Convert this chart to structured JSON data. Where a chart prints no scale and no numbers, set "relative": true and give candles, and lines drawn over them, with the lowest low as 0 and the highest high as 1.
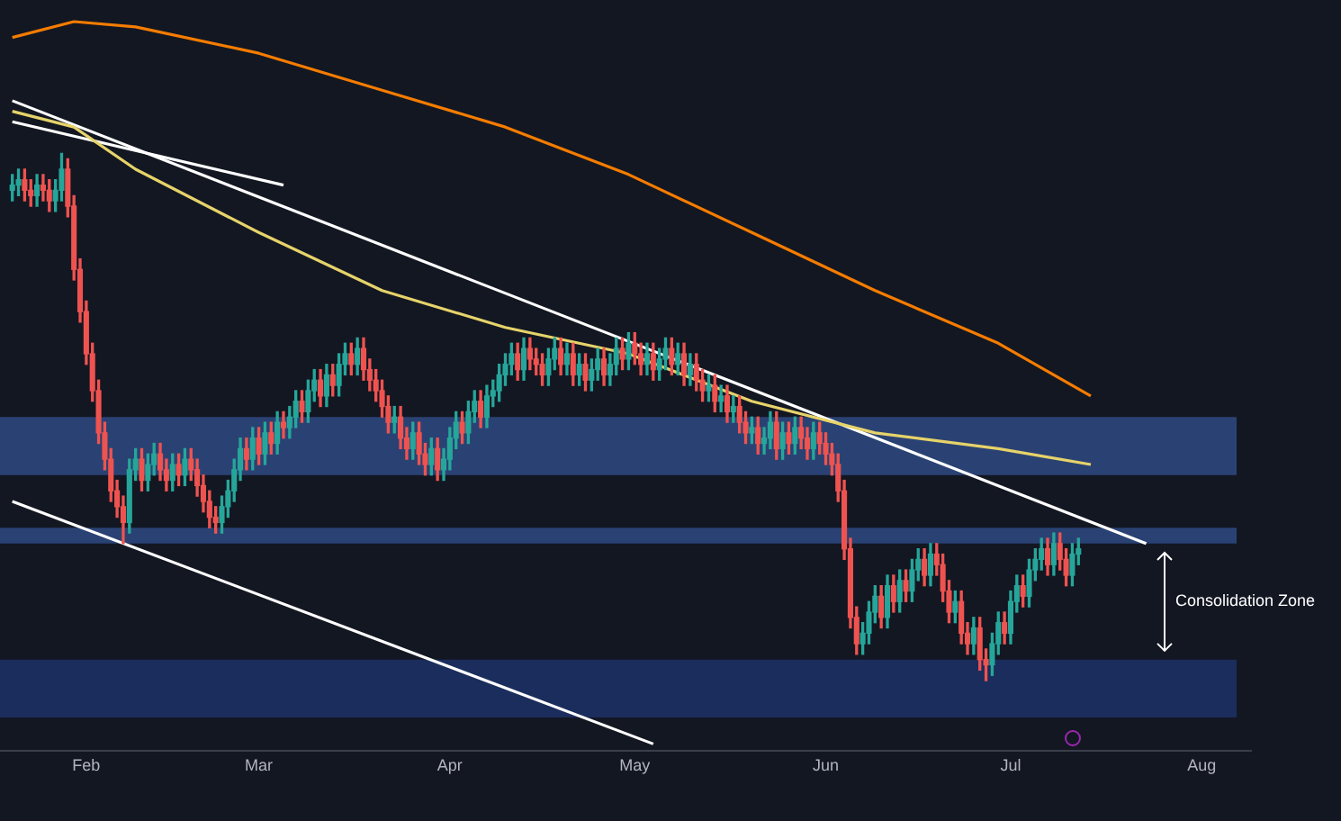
{
  "chart_data": {
    "type": "candlestick",
    "relative": true,
    "x": [
      "--01-20",
      "--01-21",
      "--01-22",
      "--01-23",
      "--01-24",
      "--01-25",
      "--01-26",
      "--01-27",
      "--01-28",
      "--01-29",
      "--01-30",
      "--01-31",
      "--02-01",
      "--02-02",
      "--02-03",
      "--02-04",
      "--02-05",
      "--02-06",
      "--02-07",
      "--02-08",
      "--02-09",
      "--02-10",
      "--02-11",
      "--02-12",
      "--02-13",
      "--02-14",
      "--02-15",
      "--02-16",
      "--02-17",
      "--02-18",
      "--02-19",
      "--02-20",
      "--02-21",
      "--02-22",
      "--02-23",
      "--02-24",
      "--02-25",
      "--02-26",
      "--02-27",
      "--02-28",
      "--03-01",
      "--03-02",
      "--03-03",
      "--03-04",
      "--03-05",
      "--03-06",
      "--03-07",
      "--03-08",
      "--03-09",
      "--03-10",
      "--03-11",
      "--03-12",
      "--03-13",
      "--03-14",
      "--03-15",
      "--03-16",
      "--03-17",
      "--03-18",
      "--03-19",
      "--03-20",
      "--03-21",
      "--03-22",
      "--03-23",
      "--03-24",
      "--03-25",
      "--03-26",
      "--03-27",
      "--03-28",
      "--03-29",
      "--03-30",
      "--03-31",
      "--04-01",
      "--04-02",
      "--04-03",
      "--04-04",
      "--04-05",
      "--04-06",
      "--04-07",
      "--04-08",
      "--04-09",
      "--04-10",
      "--04-11",
      "--04-12",
      "--04-13",
      "--04-14",
      "--04-15",
      "--04-16",
      "--04-17",
      "--04-18",
      "--04-19",
      "--04-20",
      "--04-21",
      "--04-22",
      "--04-23",
      "--04-24",
      "--04-25",
      "--04-26",
      "--04-27",
      "--04-28",
      "--04-29",
      "--04-30",
      "--05-01",
      "--05-02",
      "--05-03",
      "--05-04",
      "--05-05",
      "--05-06",
      "--05-07",
      "--05-08",
      "--05-09",
      "--05-10",
      "--05-11",
      "--05-12",
      "--05-13",
      "--05-14",
      "--05-15",
      "--05-16",
      "--05-17",
      "--05-18",
      "--05-19",
      "--05-20",
      "--05-21",
      "--05-22",
      "--05-23",
      "--05-24",
      "--05-25",
      "--05-26",
      "--05-27",
      "--05-28",
      "--05-29",
      "--05-30",
      "--05-31",
      "--06-01",
      "--06-02",
      "--06-03",
      "--06-04",
      "--06-05",
      "--06-06",
      "--06-07",
      "--06-08",
      "--06-09",
      "--06-10",
      "--06-11",
      "--06-12",
      "--06-13",
      "--06-14",
      "--06-15",
      "--06-16",
      "--06-17",
      "--06-18",
      "--06-19",
      "--06-20",
      "--06-21",
      "--06-22",
      "--06-23",
      "--06-24",
      "--06-25",
      "--06-26",
      "--06-27",
      "--06-28",
      "--06-29",
      "--06-30",
      "--07-01",
      "--07-02",
      "--07-03",
      "--07-04",
      "--07-05",
      "--07-06",
      "--07-07",
      "--07-08",
      "--07-09",
      "--07-10",
      "--07-11",
      "--07-12"
    ],
    "ohlc": [
      [
        0.93,
        0.96,
        0.91,
        0.94
      ],
      [
        0.94,
        0.97,
        0.92,
        0.95
      ],
      [
        0.95,
        0.97,
        0.91,
        0.93
      ],
      [
        0.93,
        0.95,
        0.9,
        0.92
      ],
      [
        0.92,
        0.96,
        0.9,
        0.94
      ],
      [
        0.94,
        0.96,
        0.91,
        0.93
      ],
      [
        0.93,
        0.95,
        0.89,
        0.91
      ],
      [
        0.91,
        0.95,
        0.89,
        0.93
      ],
      [
        0.93,
        1,
        0.91,
        0.97
      ],
      [
        0.97,
        0.99,
        0.88,
        0.9
      ],
      [
        0.9,
        0.92,
        0.76,
        0.78
      ],
      [
        0.78,
        0.8,
        0.68,
        0.7
      ],
      [
        0.7,
        0.72,
        0.6,
        0.62
      ],
      [
        0.62,
        0.64,
        0.53,
        0.55
      ],
      [
        0.55,
        0.57,
        0.45,
        0.47
      ],
      [
        0.47,
        0.49,
        0.4,
        0.42
      ],
      [
        0.42,
        0.44,
        0.34,
        0.36
      ],
      [
        0.36,
        0.38,
        0.31,
        0.33
      ],
      [
        0.33,
        0.35,
        0.26,
        0.3
      ],
      [
        0.3,
        0.42,
        0.28,
        0.4
      ],
      [
        0.4,
        0.44,
        0.38,
        0.42
      ],
      [
        0.42,
        0.44,
        0.36,
        0.38
      ],
      [
        0.38,
        0.43,
        0.36,
        0.41
      ],
      [
        0.41,
        0.45,
        0.39,
        0.43
      ],
      [
        0.43,
        0.45,
        0.38,
        0.4
      ],
      [
        0.4,
        0.42,
        0.36,
        0.38
      ],
      [
        0.38,
        0.43,
        0.36,
        0.41
      ],
      [
        0.41,
        0.43,
        0.37,
        0.39
      ],
      [
        0.39,
        0.44,
        0.37,
        0.42
      ],
      [
        0.42,
        0.44,
        0.38,
        0.4
      ],
      [
        0.4,
        0.42,
        0.35,
        0.37
      ],
      [
        0.37,
        0.39,
        0.32,
        0.34
      ],
      [
        0.34,
        0.36,
        0.29,
        0.31
      ],
      [
        0.31,
        0.33,
        0.28,
        0.3
      ],
      [
        0.3,
        0.35,
        0.28,
        0.33
      ],
      [
        0.33,
        0.38,
        0.31,
        0.36
      ],
      [
        0.36,
        0.42,
        0.34,
        0.4
      ],
      [
        0.4,
        0.46,
        0.38,
        0.44
      ],
      [
        0.44,
        0.46,
        0.4,
        0.42
      ],
      [
        0.42,
        0.48,
        0.4,
        0.46
      ],
      [
        0.46,
        0.48,
        0.41,
        0.43
      ],
      [
        0.43,
        0.49,
        0.41,
        0.47
      ],
      [
        0.47,
        0.49,
        0.43,
        0.45
      ],
      [
        0.45,
        0.51,
        0.43,
        0.49
      ],
      [
        0.49,
        0.51,
        0.46,
        0.48
      ],
      [
        0.48,
        0.52,
        0.46,
        0.5
      ],
      [
        0.5,
        0.55,
        0.48,
        0.53
      ],
      [
        0.53,
        0.55,
        0.49,
        0.51
      ],
      [
        0.51,
        0.57,
        0.49,
        0.55
      ],
      [
        0.55,
        0.59,
        0.53,
        0.57
      ],
      [
        0.57,
        0.59,
        0.52,
        0.54
      ],
      [
        0.54,
        0.6,
        0.52,
        0.58
      ],
      [
        0.58,
        0.6,
        0.54,
        0.56
      ],
      [
        0.56,
        0.62,
        0.54,
        0.6
      ],
      [
        0.6,
        0.64,
        0.58,
        0.62
      ],
      [
        0.62,
        0.64,
        0.58,
        0.6
      ],
      [
        0.6,
        0.65,
        0.58,
        0.63
      ],
      [
        0.63,
        0.65,
        0.57,
        0.59
      ],
      [
        0.59,
        0.61,
        0.55,
        0.57
      ],
      [
        0.57,
        0.59,
        0.53,
        0.55
      ],
      [
        0.55,
        0.57,
        0.5,
        0.52
      ],
      [
        0.52,
        0.54,
        0.47,
        0.49
      ],
      [
        0.49,
        0.52,
        0.47,
        0.5
      ],
      [
        0.5,
        0.52,
        0.44,
        0.46
      ],
      [
        0.46,
        0.48,
        0.42,
        0.44
      ],
      [
        0.44,
        0.49,
        0.42,
        0.47
      ],
      [
        0.47,
        0.49,
        0.41,
        0.43
      ],
      [
        0.43,
        0.45,
        0.39,
        0.41
      ],
      [
        0.41,
        0.46,
        0.39,
        0.44
      ],
      [
        0.44,
        0.46,
        0.38,
        0.4
      ],
      [
        0.4,
        0.44,
        0.38,
        0.42
      ],
      [
        0.42,
        0.48,
        0.4,
        0.46
      ],
      [
        0.46,
        0.51,
        0.44,
        0.49
      ],
      [
        0.49,
        0.51,
        0.45,
        0.47
      ],
      [
        0.47,
        0.53,
        0.45,
        0.51
      ],
      [
        0.51,
        0.55,
        0.49,
        0.53
      ],
      [
        0.53,
        0.55,
        0.48,
        0.5
      ],
      [
        0.5,
        0.56,
        0.48,
        0.54
      ],
      [
        0.54,
        0.57,
        0.52,
        0.55
      ],
      [
        0.55,
        0.6,
        0.53,
        0.58
      ],
      [
        0.58,
        0.62,
        0.56,
        0.6
      ],
      [
        0.6,
        0.64,
        0.58,
        0.62
      ],
      [
        0.62,
        0.64,
        0.57,
        0.59
      ],
      [
        0.59,
        0.65,
        0.57,
        0.63
      ],
      [
        0.63,
        0.65,
        0.59,
        0.61
      ],
      [
        0.61,
        0.63,
        0.58,
        0.6
      ],
      [
        0.6,
        0.62,
        0.56,
        0.58
      ],
      [
        0.58,
        0.63,
        0.56,
        0.61
      ],
      [
        0.61,
        0.65,
        0.59,
        0.63
      ],
      [
        0.63,
        0.65,
        0.58,
        0.6
      ],
      [
        0.6,
        0.64,
        0.58,
        0.62
      ],
      [
        0.62,
        0.64,
        0.56,
        0.58
      ],
      [
        0.58,
        0.62,
        0.56,
        0.6
      ],
      [
        0.6,
        0.62,
        0.55,
        0.57
      ],
      [
        0.57,
        0.61,
        0.55,
        0.59
      ],
      [
        0.59,
        0.63,
        0.57,
        0.61
      ],
      [
        0.61,
        0.63,
        0.56,
        0.58
      ],
      [
        0.58,
        0.62,
        0.56,
        0.6
      ],
      [
        0.6,
        0.65,
        0.58,
        0.63
      ],
      [
        0.63,
        0.65,
        0.59,
        0.61
      ],
      [
        0.61,
        0.66,
        0.59,
        0.64
      ],
      [
        0.64,
        0.66,
        0.6,
        0.62
      ],
      [
        0.62,
        0.64,
        0.58,
        0.6
      ],
      [
        0.6,
        0.64,
        0.58,
        0.62
      ],
      [
        0.62,
        0.64,
        0.57,
        0.59
      ],
      [
        0.59,
        0.63,
        0.57,
        0.61
      ],
      [
        0.61,
        0.65,
        0.59,
        0.63
      ],
      [
        0.63,
        0.65,
        0.58,
        0.6
      ],
      [
        0.6,
        0.64,
        0.58,
        0.62
      ],
      [
        0.62,
        0.64,
        0.56,
        0.58
      ],
      [
        0.58,
        0.62,
        0.56,
        0.6
      ],
      [
        0.6,
        0.62,
        0.55,
        0.57
      ],
      [
        0.57,
        0.59,
        0.53,
        0.55
      ],
      [
        0.55,
        0.58,
        0.53,
        0.56
      ],
      [
        0.56,
        0.58,
        0.51,
        0.53
      ],
      [
        0.53,
        0.56,
        0.51,
        0.54
      ],
      [
        0.54,
        0.56,
        0.49,
        0.51
      ],
      [
        0.51,
        0.54,
        0.49,
        0.52
      ],
      [
        0.52,
        0.54,
        0.47,
        0.49
      ],
      [
        0.49,
        0.51,
        0.45,
        0.47
      ],
      [
        0.47,
        0.5,
        0.45,
        0.48
      ],
      [
        0.48,
        0.5,
        0.43,
        0.45
      ],
      [
        0.45,
        0.48,
        0.43,
        0.46
      ],
      [
        0.46,
        0.51,
        0.44,
        0.49
      ],
      [
        0.49,
        0.51,
        0.42,
        0.44
      ],
      [
        0.44,
        0.49,
        0.42,
        0.47
      ],
      [
        0.47,
        0.49,
        0.43,
        0.45
      ],
      [
        0.45,
        0.5,
        0.43,
        0.48
      ],
      [
        0.48,
        0.5,
        0.44,
        0.46
      ],
      [
        0.46,
        0.48,
        0.42,
        0.44
      ],
      [
        0.44,
        0.49,
        0.42,
        0.47
      ],
      [
        0.47,
        0.49,
        0.43,
        0.45
      ],
      [
        0.45,
        0.47,
        0.41,
        0.43
      ],
      [
        0.43,
        0.45,
        0.39,
        0.41
      ],
      [
        0.41,
        0.43,
        0.34,
        0.36
      ],
      [
        0.36,
        0.38,
        0.23,
        0.25
      ],
      [
        0.25,
        0.27,
        0.1,
        0.12
      ],
      [
        0.12,
        0.14,
        0.05,
        0.07
      ],
      [
        0.07,
        0.11,
        0.05,
        0.09
      ],
      [
        0.09,
        0.15,
        0.07,
        0.13
      ],
      [
        0.13,
        0.18,
        0.11,
        0.16
      ],
      [
        0.16,
        0.18,
        0.1,
        0.12
      ],
      [
        0.12,
        0.2,
        0.1,
        0.18
      ],
      [
        0.18,
        0.2,
        0.13,
        0.15
      ],
      [
        0.15,
        0.21,
        0.13,
        0.19
      ],
      [
        0.19,
        0.21,
        0.15,
        0.17
      ],
      [
        0.17,
        0.23,
        0.15,
        0.21
      ],
      [
        0.21,
        0.25,
        0.19,
        0.23
      ],
      [
        0.23,
        0.25,
        0.18,
        0.2
      ],
      [
        0.2,
        0.26,
        0.18,
        0.24
      ],
      [
        0.24,
        0.26,
        0.2,
        0.22
      ],
      [
        0.22,
        0.24,
        0.15,
        0.17
      ],
      [
        0.17,
        0.19,
        0.11,
        0.13
      ],
      [
        0.13,
        0.17,
        0.11,
        0.15
      ],
      [
        0.15,
        0.17,
        0.07,
        0.09
      ],
      [
        0.09,
        0.11,
        0.05,
        0.07
      ],
      [
        0.07,
        0.12,
        0.05,
        0.1
      ],
      [
        0.1,
        0.12,
        0.02,
        0.04
      ],
      [
        0.04,
        0.06,
        0,
        0.03
      ],
      [
        0.03,
        0.09,
        0.01,
        0.07
      ],
      [
        0.07,
        0.13,
        0.05,
        0.11
      ],
      [
        0.11,
        0.13,
        0.07,
        0.09
      ],
      [
        0.09,
        0.17,
        0.07,
        0.15
      ],
      [
        0.15,
        0.2,
        0.13,
        0.18
      ],
      [
        0.18,
        0.2,
        0.14,
        0.16
      ],
      [
        0.16,
        0.23,
        0.14,
        0.21
      ],
      [
        0.21,
        0.25,
        0.19,
        0.23
      ],
      [
        0.23,
        0.27,
        0.21,
        0.25
      ],
      [
        0.25,
        0.27,
        0.2,
        0.22
      ],
      [
        0.22,
        0.28,
        0.2,
        0.26
      ],
      [
        0.26,
        0.28,
        0.21,
        0.23
      ],
      [
        0.23,
        0.25,
        0.18,
        0.2
      ],
      [
        0.2,
        0.26,
        0.18,
        0.24
      ],
      [
        0.24,
        0.27,
        0.22,
        0.25
      ]
    ],
    "xlim": [
      "--01-18",
      "--08-09"
    ],
    "xticks": [
      {
        "value": "--02-01",
        "label": "Feb"
      },
      {
        "value": "--03-01",
        "label": "Mar"
      },
      {
        "value": "--04-01",
        "label": "Apr"
      },
      {
        "value": "--05-01",
        "label": "May"
      },
      {
        "value": "--06-01",
        "label": "Jun"
      },
      {
        "value": "--07-01",
        "label": "Jul"
      },
      {
        "value": "--08-01",
        "label": "Aug"
      }
    ],
    "series": [
      {
        "type": "line",
        "color": "#f57c00",
        "x": [
          "--01-20",
          "--01-30",
          "--02-09",
          "--03-01",
          "--03-21",
          "--04-10",
          "--04-30",
          "--05-20",
          "--06-09",
          "--06-29",
          "--07-14"
        ],
        "values": [
          1.22,
          1.25,
          1.24,
          1.19,
          1.12,
          1.05,
          0.96,
          0.85,
          0.74,
          0.64,
          0.54
        ]
      },
      {
        "type": "line",
        "color": "#e6d36a",
        "x": [
          "--01-20",
          "--01-30",
          "--02-09",
          "--03-01",
          "--03-21",
          "--04-10",
          "--04-30",
          "--05-20",
          "--06-09",
          "--06-29",
          "--07-14"
        ],
        "values": [
          1.08,
          1.05,
          0.97,
          0.85,
          0.74,
          0.67,
          0.62,
          0.53,
          0.47,
          0.44,
          0.41
        ]
      },
      {
        "type": "line",
        "color": "#ffffff",
        "x": [
          "--01-20",
          "--07-23"
        ],
        "values": [
          1.1,
          0.26
        ]
      },
      {
        "type": "line",
        "color": "#ffffff",
        "x": [
          "--01-20",
          "--03-05"
        ],
        "values": [
          1.06,
          0.94
        ]
      },
      {
        "type": "line",
        "color": "#ffffff",
        "x": [
          "--01-20",
          "--05-04"
        ],
        "values": [
          0.34,
          -0.12
        ]
      }
    ],
    "bands": [
      {
        "axis": "y",
        "from": 0.39,
        "to": 0.5,
        "color": "#2a4273"
      },
      {
        "axis": "y",
        "from": 0.26,
        "to": 0.29,
        "color": "#2a4273"
      },
      {
        "axis": "y",
        "from": -0.07,
        "to": 0.04,
        "color": "#1b2d5c"
      }
    ],
    "annotations": [
      "Consolidation Zone"
    ]
  }
}
